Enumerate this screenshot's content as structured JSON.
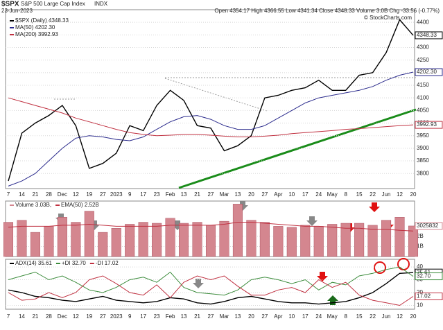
{
  "chart_data": [
    {
      "type": "line",
      "symbol": "$SPX",
      "title": "S&P 500 Large Cap Index",
      "exchange": "INDX",
      "date": "23-Jun-2023",
      "quote": "Open 4354.17 High 4366.55 Low 4341.34 Close 4348.33 Volume 3.0B Chg -33.56 (-0.77%)",
      "credit": "© StockCharts.com",
      "categories": [
        "7",
        "14",
        "21",
        "28",
        "Dec",
        "12",
        "19",
        "27",
        "2023",
        "9",
        "17",
        "23",
        "Feb",
        "13",
        "21",
        "27",
        "Mar",
        "13",
        "20",
        "27",
        "Apr",
        "10",
        "17",
        "24",
        "May",
        "8",
        "15",
        "22",
        "Jun",
        "12",
        "20"
      ],
      "series": [
        {
          "name": "$SPX (Daily) 4348.33",
          "color": "#000000",
          "values": [
            3770,
            3960,
            4000,
            4030,
            4070,
            3990,
            3820,
            3840,
            3880,
            3990,
            3970,
            4070,
            4130,
            4090,
            3990,
            3980,
            3890,
            3910,
            3950,
            4100,
            4110,
            4130,
            4140,
            4170,
            4130,
            4130,
            4190,
            4200,
            4280,
            4410,
            4348.33
          ]
        },
        {
          "name": "MA(50) 4202.30",
          "color": "#2a2a8c",
          "values": [
            3750,
            3770,
            3800,
            3850,
            3900,
            3940,
            3950,
            3945,
            3935,
            3930,
            3945,
            3975,
            4005,
            4025,
            4030,
            4015,
            3990,
            3975,
            3975,
            3990,
            4020,
            4050,
            4080,
            4100,
            4110,
            4120,
            4130,
            4145,
            4170,
            4190,
            4202.3
          ]
        },
        {
          "name": "MA(200) 3992.93",
          "color": "#c03040",
          "values": [
            4100,
            4085,
            4070,
            4055,
            4040,
            4020,
            4005,
            3990,
            3975,
            3962,
            3955,
            3950,
            3952,
            3955,
            3955,
            3952,
            3948,
            3945,
            3945,
            3948,
            3952,
            3958,
            3962,
            3966,
            3970,
            3975,
            3978,
            3982,
            3986,
            3990,
            3992.93
          ]
        }
      ],
      "last_labels": [
        "4348.33",
        "4202.30",
        "3992.93"
      ],
      "ylim": [
        3740,
        4450
      ],
      "yticks": [
        3800,
        3850,
        3900,
        3950,
        4000,
        4050,
        4100,
        4150,
        4200,
        4250,
        4300,
        4350,
        4400
      ],
      "grid": true
    },
    {
      "type": "bar",
      "categories": [
        "7",
        "14",
        "21",
        "28",
        "Dec",
        "12",
        "19",
        "27",
        "2023",
        "9",
        "17",
        "23",
        "Feb",
        "13",
        "21",
        "27",
        "Mar",
        "13",
        "20",
        "27",
        "Apr",
        "10",
        "17",
        "24",
        "May",
        "8",
        "15",
        "22",
        "Jun",
        "12",
        "20"
      ],
      "series": [
        {
          "name": "Volume 3.03B,",
          "color": "#d4868f",
          "values": [
            3.4,
            3.6,
            2.4,
            3.0,
            3.9,
            3.4,
            4.5,
            2.4,
            2.8,
            3.2,
            3.4,
            3.3,
            3.8,
            3.3,
            3.4,
            3.1,
            3.5,
            5.2,
            3.6,
            3.4,
            3.0,
            2.9,
            3.1,
            3.0,
            3.2,
            3.3,
            3.3,
            3.1,
            3.6,
            3.9,
            3.03
          ]
        },
        {
          "name": "EMA(50) 2.52B",
          "color": "#c03040",
          "values": [
            2.9,
            3.0,
            3.0,
            3.0,
            3.1,
            3.1,
            3.2,
            3.1,
            3.0,
            3.0,
            3.0,
            3.0,
            3.1,
            3.1,
            3.1,
            3.1,
            3.2,
            3.4,
            3.4,
            3.3,
            3.2,
            3.1,
            3.0,
            3.0,
            2.9,
            2.8,
            2.8,
            2.7,
            2.7,
            2.6,
            2.52
          ]
        }
      ],
      "last_labels": [
        "3025832"
      ],
      "ylim": [
        0,
        5.5
      ],
      "yticks": [
        {
          "value": 1,
          "label": "1B"
        },
        {
          "value": 2,
          "label": "2B"
        }
      ],
      "grid": true
    },
    {
      "type": "line",
      "categories": [
        "7",
        "14",
        "21",
        "28",
        "Dec",
        "12",
        "19",
        "27",
        "2023",
        "9",
        "17",
        "23",
        "Feb",
        "13",
        "21",
        "27",
        "Mar",
        "13",
        "20",
        "27",
        "Apr",
        "10",
        "17",
        "24",
        "May",
        "8",
        "15",
        "22",
        "Jun",
        "12",
        "20"
      ],
      "series": [
        {
          "name": "ADX(14) 35.61",
          "color": "#000000",
          "values": [
            22,
            20,
            17,
            16,
            14,
            13,
            15,
            17,
            14,
            13,
            12,
            13,
            16,
            15,
            12,
            11,
            13,
            16,
            17,
            15,
            13,
            12,
            12,
            11,
            12,
            13,
            16,
            20,
            27,
            35,
            35.61
          ]
        },
        {
          "name": "+DI 32.70",
          "color": "#3c8c3c",
          "values": [
            30,
            33,
            36,
            30,
            33,
            28,
            22,
            20,
            24,
            30,
            32,
            28,
            36,
            24,
            20,
            19,
            18,
            22,
            30,
            32,
            30,
            27,
            30,
            22,
            28,
            26,
            33,
            35,
            38,
            40,
            32.7
          ]
        },
        {
          "name": "-DI 17.02",
          "color": "#c03040",
          "values": [
            20,
            14,
            15,
            20,
            16,
            20,
            30,
            33,
            27,
            20,
            18,
            26,
            16,
            28,
            33,
            30,
            33,
            25,
            18,
            18,
            22,
            24,
            20,
            30,
            24,
            28,
            18,
            14,
            12,
            10,
            17.02
          ]
        }
      ],
      "last_labels": [
        "35.61",
        "32.70",
        "17.02"
      ],
      "ylim": [
        7,
        46
      ],
      "yticks": [
        10,
        20,
        30,
        40
      ],
      "grid": true
    }
  ]
}
